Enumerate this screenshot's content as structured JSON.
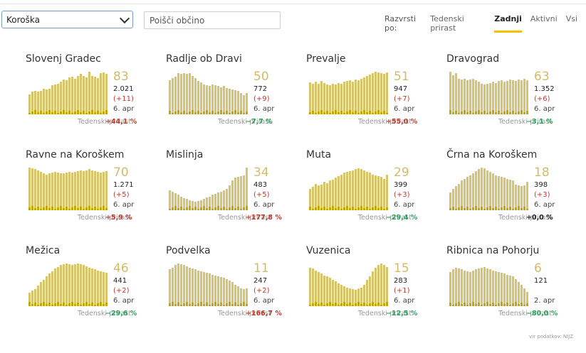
{
  "region_select": {
    "value": "Koroška"
  },
  "search": {
    "placeholder": "Poišči občino"
  },
  "sort": {
    "label": "Razvrsti po:",
    "options": [
      "Tedenski prirast",
      "Zadnji",
      "Aktivni",
      "Vsi"
    ],
    "active": "Zadnji"
  },
  "weekly_label": "Tedenski prirast",
  "colors": {
    "bar": "#d7c46c",
    "bar_dark": "#c5a500",
    "up": "#c0392b",
    "down": "#27a35b",
    "zero": "#222222",
    "active_underline": "#f2c200"
  },
  "municipalities": [
    {
      "name": "Slovenj Gradec",
      "active": "83",
      "total": "2.021",
      "diff": "(+11)",
      "date": "6. apr",
      "weekly": "+44,1 %",
      "trend": "up",
      "bars": [
        0.46,
        0.53,
        0.55,
        0.53,
        0.55,
        0.6,
        0.58,
        0.6,
        0.68,
        0.7,
        0.72,
        0.76,
        0.81,
        0.8,
        0.86,
        0.88,
        0.83,
        0.9,
        0.95,
        0.9,
        0.86,
        1.0,
        0.9,
        0.88,
        0.85,
        0.96,
        0.98,
        0.95
      ]
    },
    {
      "name": "Radlje ob Dravi",
      "active": "50",
      "total": "772",
      "diff": "(+9)",
      "date": "6. apr",
      "weekly": "−7,7 %",
      "trend": "down",
      "bars": [
        0.8,
        0.85,
        0.88,
        0.96,
        0.95,
        0.97,
        0.95,
        0.96,
        0.9,
        0.85,
        0.78,
        0.75,
        0.7,
        0.68,
        0.66,
        0.7,
        0.68,
        0.66,
        0.64,
        0.66,
        0.62,
        0.6,
        0.58,
        0.56,
        0.55,
        0.5,
        0.45,
        0.5
      ]
    },
    {
      "name": "Prevalje",
      "active": "51",
      "total": "947",
      "diff": "(+7)",
      "date": "6. apr",
      "weekly": "+55,0 %",
      "trend": "up",
      "bars": [
        0.75,
        0.72,
        0.76,
        0.72,
        0.78,
        0.74,
        0.7,
        0.68,
        0.72,
        0.7,
        0.74,
        0.72,
        0.76,
        0.78,
        0.8,
        0.76,
        0.82,
        0.8,
        0.84,
        0.86,
        0.9,
        0.94,
        0.96,
        1.0,
        0.98,
        0.96,
        0.95,
        0.98
      ]
    },
    {
      "name": "Dravograd",
      "active": "63",
      "total": "1.352",
      "diff": "(+6)",
      "date": "6. apr",
      "weekly": "−3,1 %",
      "trend": "down",
      "bars": [
        1.0,
        0.92,
        0.96,
        0.84,
        0.82,
        0.84,
        0.8,
        0.82,
        0.84,
        0.8,
        0.76,
        0.72,
        0.7,
        0.72,
        0.74,
        0.76,
        0.74,
        0.78,
        0.8,
        0.76,
        0.78,
        0.82,
        0.8,
        0.78,
        0.82,
        0.8,
        0.84,
        0.8
      ]
    },
    {
      "name": "Ravne na Koroškem",
      "active": "70",
      "total": "1.271",
      "diff": "(+5)",
      "date": "6. apr",
      "weekly": "+5,9 %",
      "trend": "up",
      "bars": [
        1.0,
        0.98,
        0.96,
        0.94,
        0.9,
        0.86,
        0.84,
        0.86,
        0.88,
        0.9,
        0.88,
        0.86,
        0.86,
        0.88,
        0.9,
        0.88,
        0.9,
        0.92,
        0.94,
        0.92,
        0.94,
        0.96,
        0.94,
        0.92,
        0.9,
        0.88,
        0.9,
        0.92
      ]
    },
    {
      "name": "Mislinja",
      "active": "34",
      "total": "483",
      "diff": "(+5)",
      "date": "6. apr",
      "weekly": "+177,8 %",
      "trend": "up",
      "bars": [
        0.46,
        0.44,
        0.4,
        0.36,
        0.32,
        0.28,
        0.26,
        0.24,
        0.22,
        0.2,
        0.22,
        0.24,
        0.26,
        0.3,
        0.32,
        0.36,
        0.38,
        0.42,
        0.44,
        0.46,
        0.5,
        0.58,
        0.7,
        0.76,
        0.78,
        0.8,
        0.82,
        1.0
      ]
    },
    {
      "name": "Muta",
      "active": "29",
      "total": "399",
      "diff": "(+3)",
      "date": "6. apr",
      "weekly": "−29,4 %",
      "trend": "down",
      "bars": [
        0.5,
        0.55,
        0.62,
        0.58,
        0.6,
        0.66,
        0.64,
        0.7,
        0.72,
        0.76,
        0.8,
        0.84,
        0.88,
        0.9,
        0.92,
        0.94,
        0.96,
        0.98,
        0.96,
        0.94,
        0.9,
        0.88,
        0.84,
        0.82,
        0.8,
        0.78,
        0.74,
        0.84
      ]
    },
    {
      "name": "Črna na Koroškem",
      "active": "18",
      "total": "398",
      "diff": "(+3)",
      "date": "6. apr",
      "weekly": "+0,0 %",
      "trend": "zero",
      "bars": [
        0.42,
        0.5,
        0.56,
        0.62,
        0.7,
        0.74,
        0.78,
        0.82,
        0.86,
        0.92,
        0.96,
        1.0,
        0.98,
        0.94,
        0.9,
        0.86,
        0.82,
        0.8,
        0.78,
        0.76,
        0.74,
        0.72,
        0.7,
        0.6,
        0.58,
        0.56,
        0.58,
        0.66
      ]
    },
    {
      "name": "Mežica",
      "active": "46",
      "total": "441",
      "diff": "(+2)",
      "date": "6. apr",
      "weekly": "−29,6 %",
      "trend": "down",
      "bars": [
        0.32,
        0.36,
        0.4,
        0.48,
        0.56,
        0.62,
        0.7,
        0.76,
        0.82,
        0.88,
        0.92,
        0.96,
        0.98,
        1.0,
        0.98,
        0.96,
        0.98,
        1.0,
        0.98,
        0.96,
        0.94,
        0.9,
        0.88,
        0.86,
        0.84,
        0.82,
        0.8,
        0.78
      ]
    },
    {
      "name": "Podvelka",
      "active": "11",
      "total": "247",
      "diff": "(+2)",
      "date": "6. apr",
      "weekly": "+166,7 %",
      "trend": "up",
      "bars": [
        0.86,
        0.9,
        0.96,
        1.0,
        0.98,
        0.96,
        0.94,
        0.9,
        0.88,
        0.86,
        0.84,
        0.82,
        0.8,
        0.78,
        0.76,
        0.74,
        0.72,
        0.7,
        0.68,
        0.66,
        0.64,
        0.6,
        0.56,
        0.5,
        0.46,
        0.42,
        0.4,
        0.42
      ]
    },
    {
      "name": "Vuzenica",
      "active": "15",
      "total": "283",
      "diff": "(+1)",
      "date": "6. apr",
      "weekly": "−12,5 %",
      "trend": "down",
      "bars": [
        0.9,
        0.88,
        0.84,
        0.8,
        0.76,
        0.72,
        0.7,
        0.66,
        0.62,
        0.58,
        0.54,
        0.5,
        0.46,
        0.44,
        0.42,
        0.4,
        0.38,
        0.42,
        0.44,
        0.5,
        0.62,
        0.7,
        0.82,
        0.9,
        0.96,
        1.0,
        0.96,
        0.92
      ]
    },
    {
      "name": "Ribnica na Pohorju",
      "active": "6",
      "total": "121",
      "diff": "",
      "date": "2. apr",
      "weekly": "−80,0 %",
      "trend": "down",
      "bars": [
        0.8,
        0.86,
        0.9,
        0.88,
        0.86,
        0.84,
        0.82,
        0.8,
        0.84,
        0.86,
        0.88,
        0.9,
        0.92,
        0.88,
        0.86,
        0.84,
        0.82,
        0.8,
        0.78,
        0.76,
        0.74,
        0.72,
        0.7,
        0.64,
        0.56,
        0.5,
        0.42,
        0.34
      ]
    }
  ]
}
